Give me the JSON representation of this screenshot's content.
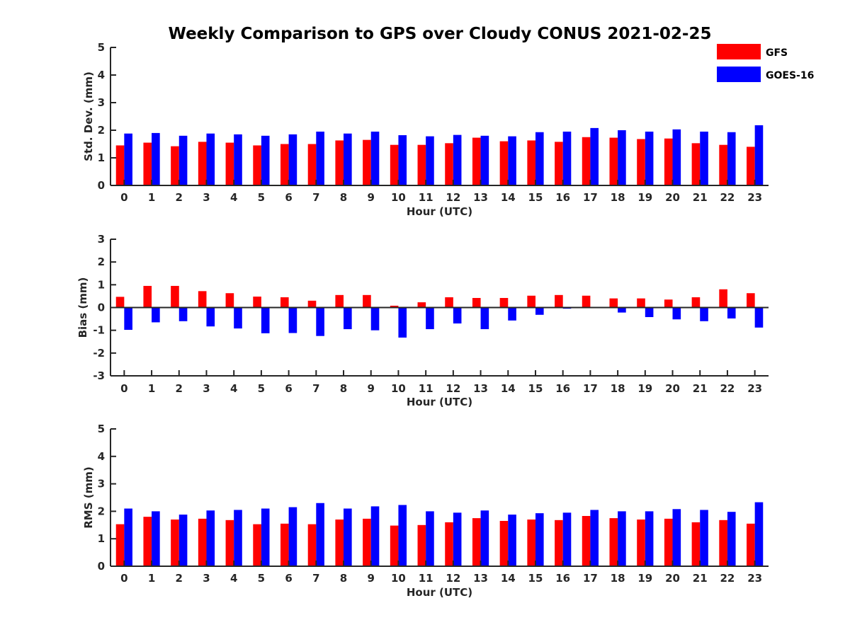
{
  "chart_data": {
    "type": "bar",
    "title": "Weekly Comparison to GPS over Cloudy CONUS 2021-02-25",
    "legend": {
      "placement": "top-right",
      "entries": [
        {
          "name": "GFS",
          "color": "#ff0000"
        },
        {
          "name": "GOES-16",
          "color": "#0000ff"
        }
      ]
    },
    "categories": [
      "0",
      "1",
      "2",
      "3",
      "4",
      "5",
      "6",
      "7",
      "8",
      "9",
      "10",
      "11",
      "12",
      "13",
      "14",
      "15",
      "16",
      "17",
      "18",
      "19",
      "20",
      "21",
      "22",
      "23"
    ],
    "panels": [
      {
        "ylabel": "Std. Dev. (mm)",
        "xlabel": "Hour (UTC)",
        "ylim": [
          0,
          5
        ],
        "yticks": [
          "0",
          "1",
          "2",
          "3",
          "4",
          "5"
        ],
        "series": [
          {
            "name": "GFS",
            "color": "#ff0000",
            "values": [
              1.45,
              1.55,
              1.42,
              1.58,
              1.55,
              1.45,
              1.5,
              1.5,
              1.63,
              1.65,
              1.47,
              1.47,
              1.53,
              1.73,
              1.6,
              1.63,
              1.58,
              1.75,
              1.73,
              1.68,
              1.7,
              1.53,
              1.47,
              1.4
            ]
          },
          {
            "name": "GOES-16",
            "color": "#0000ff",
            "values": [
              1.88,
              1.9,
              1.8,
              1.88,
              1.85,
              1.8,
              1.85,
              1.95,
              1.88,
              1.95,
              1.82,
              1.78,
              1.83,
              1.8,
              1.78,
              1.93,
              1.95,
              2.08,
              2.0,
              1.95,
              2.03,
              1.95,
              1.93,
              2.18
            ]
          }
        ]
      },
      {
        "ylabel": "Bias (mm)",
        "xlabel": "Hour (UTC)",
        "ylim": [
          -3,
          3
        ],
        "yticks": [
          "-3",
          "-2",
          "-1",
          "0",
          "1",
          "2",
          "3"
        ],
        "zero_line": true,
        "series": [
          {
            "name": "GFS",
            "color": "#ff0000",
            "values": [
              0.47,
              0.95,
              0.95,
              0.72,
              0.63,
              0.48,
              0.45,
              0.3,
              0.55,
              0.55,
              0.08,
              0.23,
              0.45,
              0.42,
              0.42,
              0.52,
              0.55,
              0.52,
              0.4,
              0.4,
              0.35,
              0.45,
              0.8,
              0.63
            ]
          },
          {
            "name": "GOES-16",
            "color": "#0000ff",
            "values": [
              -0.98,
              -0.65,
              -0.6,
              -0.83,
              -0.92,
              -1.13,
              -1.12,
              -1.25,
              -0.95,
              -1.0,
              -1.32,
              -0.95,
              -0.7,
              -0.95,
              -0.57,
              -0.32,
              -0.05,
              0.0,
              -0.22,
              -0.42,
              -0.52,
              -0.6,
              -0.48,
              -0.88
            ]
          }
        ]
      },
      {
        "ylabel": "RMS (mm)",
        "xlabel": "Hour (UTC)",
        "ylim": [
          0,
          5
        ],
        "yticks": [
          "0",
          "1",
          "2",
          "3",
          "4",
          "5"
        ],
        "series": [
          {
            "name": "GFS",
            "color": "#ff0000",
            "values": [
              1.53,
              1.8,
              1.7,
              1.73,
              1.68,
              1.53,
              1.55,
              1.53,
              1.7,
              1.73,
              1.48,
              1.5,
              1.6,
              1.75,
              1.65,
              1.7,
              1.68,
              1.83,
              1.75,
              1.7,
              1.73,
              1.6,
              1.68,
              1.55
            ]
          },
          {
            "name": "GOES-16",
            "color": "#0000ff",
            "values": [
              2.1,
              2.0,
              1.88,
              2.03,
              2.05,
              2.1,
              2.15,
              2.3,
              2.1,
              2.18,
              2.23,
              2.0,
              1.95,
              2.03,
              1.88,
              1.93,
              1.95,
              2.05,
              2.0,
              2.0,
              2.08,
              2.05,
              1.98,
              2.33
            ]
          }
        ]
      }
    ]
  }
}
